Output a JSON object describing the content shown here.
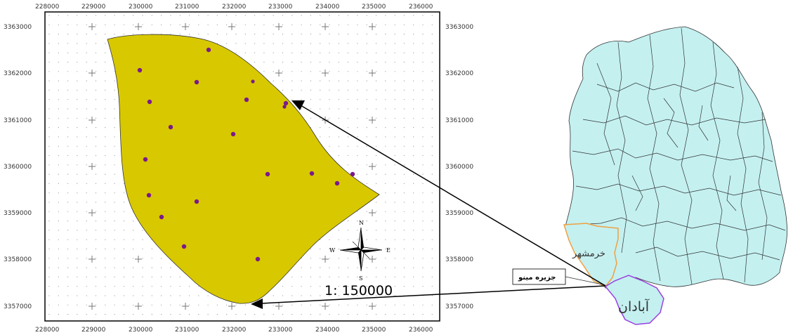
{
  "detail_map": {
    "x_ticks": [
      "228000",
      "229000",
      "230000",
      "231000",
      "232000",
      "233000",
      "234000",
      "235000",
      "236000"
    ],
    "y_ticks_left": [
      "3363000",
      "3362000",
      "3361000",
      "3360000",
      "3359000",
      "3358000",
      "3357000"
    ],
    "y_ticks_right": [
      "3363000",
      "3362000",
      "3361000",
      "3360000",
      "3359000",
      "3358000",
      "3357000"
    ],
    "scale_text": "1: 150000",
    "island_color": "#d8c800",
    "point_color": "#7a1a8a",
    "sample_points_count": 23,
    "compass": {
      "north": "N",
      "south": "S",
      "east": "E",
      "west": "W"
    }
  },
  "province_map": {
    "fill_color": "#c4f0f0",
    "highlight_khorramshahr_color": "#f0a040",
    "highlight_abadan_color": "#9a40e0",
    "label_khorramshahr": "خرمشهر",
    "label_abadan": "آبادان",
    "callout_label": "جزیره مینو"
  }
}
